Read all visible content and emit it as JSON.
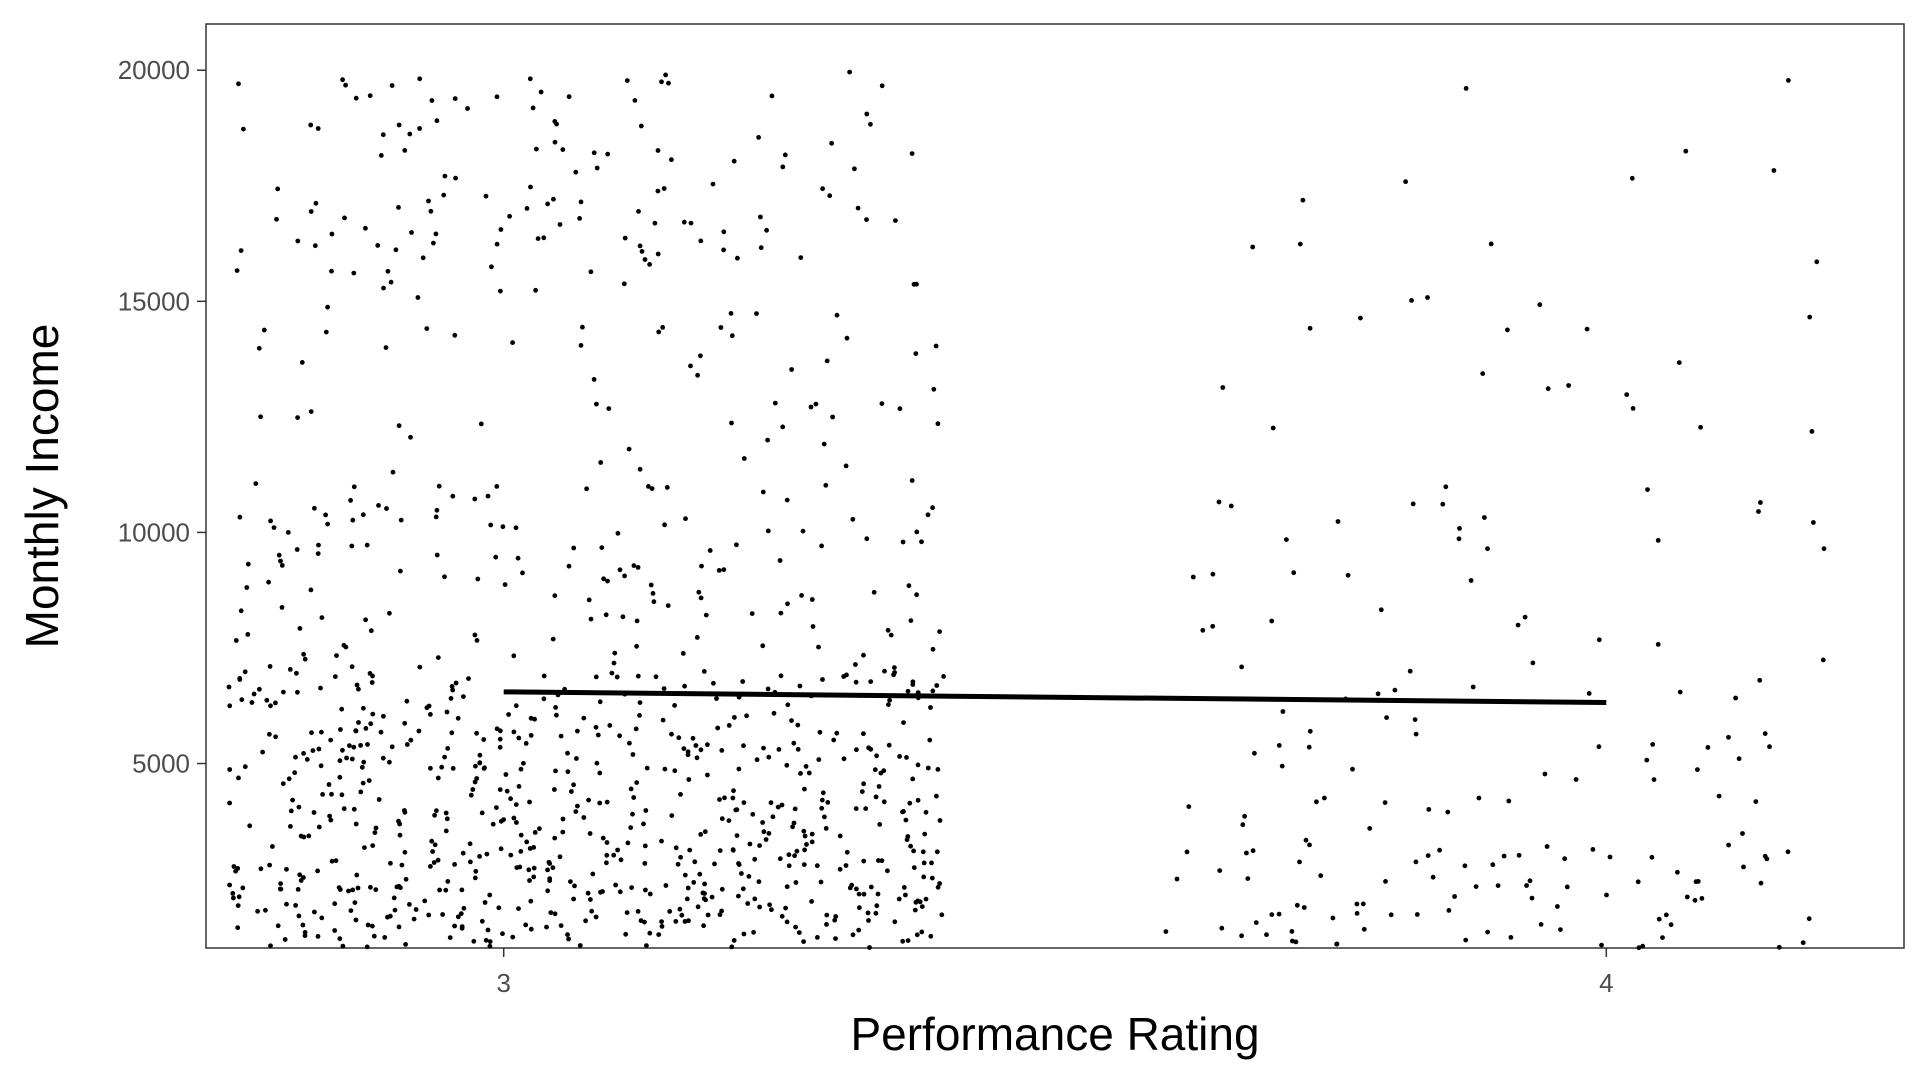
{
  "chart_data": {
    "type": "scatter",
    "xlabel": "Performance Rating",
    "ylabel": "Monthly Income",
    "x_ticks": [
      3,
      4
    ],
    "y_ticks": [
      5000,
      10000,
      15000,
      20000
    ],
    "xlim": [
      2.73,
      4.27
    ],
    "ylim": [
      1009,
      21000
    ],
    "grid": false,
    "legend": "none",
    "colors": {
      "points": "#000000",
      "trend_line": "#000000",
      "panel_border": "#333333",
      "background": "#ffffff"
    },
    "jitter": {
      "rating_3": [
        2.75,
        3.4
      ],
      "rating_4": [
        3.6,
        4.2
      ]
    },
    "trend_line": {
      "x": [
        3,
        4
      ],
      "y": [
        6550,
        6320
      ]
    },
    "point_counts": {
      "rating_3": 1000,
      "rating_4": 190
    },
    "density_bands": [
      {
        "lo": 1009,
        "hi": 3000,
        "w3": 26,
        "w4": 36
      },
      {
        "lo": 3000,
        "hi": 7000,
        "w3": 40,
        "w4": 24
      },
      {
        "lo": 7000,
        "hi": 11000,
        "w3": 14,
        "w4": 15
      },
      {
        "lo": 11000,
        "hi": 15000,
        "w3": 6,
        "w4": 8
      },
      {
        "lo": 15000,
        "hi": 19999,
        "w3": 14,
        "w4": 10
      }
    ]
  }
}
